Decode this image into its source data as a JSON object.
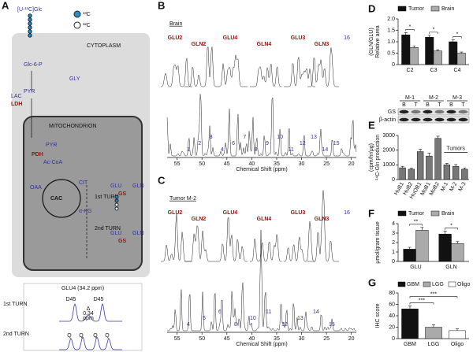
{
  "panel_a": {
    "label": "A",
    "substrate": "[U-¹³C]Glc",
    "legend": [
      "¹³C",
      "¹²C"
    ],
    "compartments": [
      "CYTOPLASM",
      "MITOCHONDRION"
    ],
    "metabolites": [
      "Glc-6-P",
      "GLY",
      "LAC",
      "PYR",
      "PYR",
      "Ac-CoA",
      "OAA",
      "CIT",
      "α-KG",
      "GLU",
      "GLN",
      "GLU",
      "GLN"
    ],
    "enzymes": [
      "LDH",
      "PDH",
      "GS",
      "GS"
    ],
    "cycle": "CAC",
    "turns": [
      "1st TURN",
      "2nd TURN"
    ],
    "inset": {
      "title": "GLU4 (34.2 ppm)",
      "turns": [
        "1st TURN",
        "2nd TURN"
      ],
      "labels": [
        "D45",
        "D45",
        "Δ",
        "0.34",
        "ppm",
        "Q",
        "Q",
        "Q",
        "Q"
      ]
    }
  },
  "panel_b": {
    "label": "B",
    "title": "Brain",
    "insets": [
      "GLU2",
      "GLN2",
      "GLU4",
      "GLN4",
      "GLU3",
      "GLN3",
      "16"
    ],
    "peak_numbers": [
      "1",
      "2",
      "3",
      "4",
      "6",
      "7",
      "8",
      "9",
      "10",
      "11",
      "12",
      "13",
      "14",
      "15"
    ],
    "xlabel": "Chemical Shift (ppm)",
    "xlim": [
      57,
      19
    ],
    "xticks": [
      55,
      50,
      45,
      40,
      35,
      30,
      25,
      20
    ]
  },
  "panel_c": {
    "label": "C",
    "title": "Tumor M-2",
    "insets": [
      "GLU2",
      "GLN2",
      "GLU4",
      "GLN4",
      "GLU3",
      "GLN3",
      "16"
    ],
    "peak_numbers": [
      "4",
      "5",
      "6",
      "8",
      "10",
      "11",
      "12",
      "13",
      "14",
      "15"
    ],
    "xlabel": "Chemical Shift (ppm)",
    "xlim": [
      57,
      19
    ],
    "xticks": [
      55,
      50,
      45,
      40,
      35,
      30,
      25,
      20
    ]
  },
  "chart_data": [
    {
      "label": "D",
      "type": "bar",
      "ylabel": [
        "Relative area",
        "(GLN/GLU)"
      ],
      "categories": [
        "C2",
        "C3",
        "C4"
      ],
      "series": [
        {
          "name": "Tumor",
          "color": "#111111",
          "values": [
            1.3,
            1.2,
            1.0
          ],
          "errors": [
            0.1,
            0.08,
            0.08
          ]
        },
        {
          "name": "Brain",
          "color": "#aaaaaa",
          "values": [
            0.75,
            0.6,
            0.5
          ],
          "errors": [
            0.06,
            0.05,
            0.05
          ]
        }
      ],
      "ylim": [
        0,
        2
      ],
      "yticks": [
        0,
        0.5,
        {
          "value": 1,
          "label": "1.0"
        },
        1.5,
        {
          "value": 2,
          "label": "2.0"
        }
      ],
      "significance": [
        "*",
        "*",
        "*"
      ]
    },
    {
      "label": "E",
      "type": "bar",
      "ylabel": [
        "¹⁴C-Gln production",
        "(cpm/hr/μg)"
      ],
      "categories": [
        "HuB1",
        "HuB2",
        "HuOB1",
        "MoB1",
        "MoB2",
        "M-1",
        "M-2",
        "M-3"
      ],
      "color": "#777777",
      "values": [
        800,
        700,
        1900,
        1600,
        2800,
        1000,
        900,
        700
      ],
      "errors": [
        100,
        80,
        150,
        200,
        150,
        100,
        120,
        90
      ],
      "ylim": [
        0,
        3000
      ],
      "yticks": [
        0,
        1000,
        2000,
        3000
      ],
      "annotation": "Tumors",
      "blot": {
        "groups": [
          "M-1",
          "M-2",
          "M-3"
        ],
        "lanes": [
          "B",
          "T",
          "B",
          "T",
          "B",
          "T"
        ],
        "rows": [
          "GS",
          "β-actin"
        ]
      }
    },
    {
      "label": "F",
      "type": "bar",
      "ylabel": [
        "μmol/gram tissue"
      ],
      "categories": [
        "GLU",
        "GLN"
      ],
      "series": [
        {
          "name": "Tumor",
          "color": "#111111",
          "values": [
            1.3,
            2.9
          ],
          "errors": [
            0.2,
            0.3
          ]
        },
        {
          "name": "Brain",
          "color": "#aaaaaa",
          "values": [
            3.3,
            1.9
          ],
          "errors": [
            0.3,
            0.2
          ]
        }
      ],
      "ylim": [
        0,
        4
      ],
      "yticks": [
        0,
        1,
        2,
        3,
        4
      ],
      "significance": [
        "**",
        "*"
      ]
    },
    {
      "label": "G",
      "type": "bar",
      "ylabel": [
        "IHC score"
      ],
      "categories": [
        "GBM",
        "LGG",
        "Oligo"
      ],
      "colors": [
        "#111111",
        "#aaaaaa",
        "#ffffff"
      ],
      "values": [
        52,
        20,
        14
      ],
      "errors": [
        5,
        4,
        3
      ],
      "ylim": [
        0,
        80
      ],
      "yticks": [
        0,
        20,
        40,
        60,
        80
      ],
      "significance": [
        "***",
        "***"
      ]
    }
  ]
}
